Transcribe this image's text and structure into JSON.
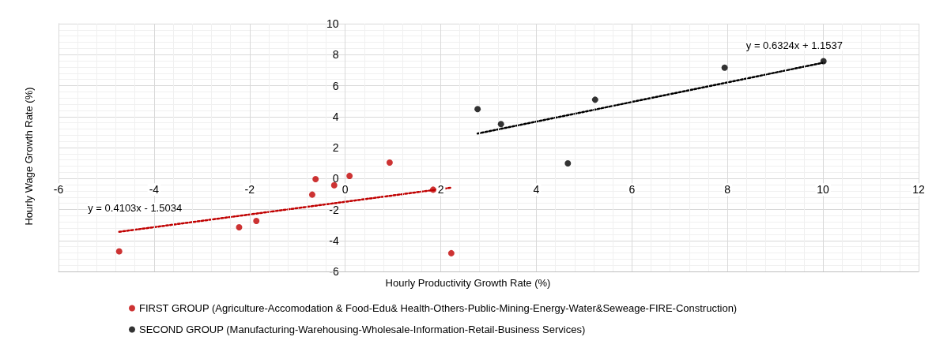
{
  "chart_data": {
    "type": "scatter",
    "xlabel": "Hourly Productivity Growth Rate (%)",
    "ylabel": "Hourly Wage Growth Rate (%)",
    "xlim": [
      -6,
      12
    ],
    "xticks": [
      -6,
      -4,
      -2,
      0,
      2,
      4,
      6,
      8,
      10,
      12
    ],
    "ylim": [
      -6,
      10
    ],
    "yticks": [
      -6,
      -4,
      -2,
      0,
      2,
      4,
      6,
      8,
      10
    ],
    "grid": true,
    "legend": "bottom",
    "marker": "circle",
    "series": [
      {
        "name": "FIRST GROUP (Agriculture-Accomodation & Food-Edu& Health-Others-Public-Mining-Energy-Water&Seweage-FIRE-Construction)",
        "color": "#c00000",
        "x": [
          -4.73,
          -2.22,
          -1.86,
          -0.69,
          -0.62,
          -0.23,
          0.09,
          0.93,
          1.84,
          2.22
        ],
        "values": [
          -4.7,
          -3.15,
          -2.74,
          -1.04,
          -0.04,
          -0.43,
          0.17,
          1.03,
          -0.72,
          -4.82
        ]
      },
      {
        "name": "SECOND GROUP (Manufacturing-Warehousing-Wholesale-Information-Retail-Business Services)",
        "color": "#000000",
        "x": [
          2.77,
          3.26,
          4.66,
          5.23,
          7.94,
          10.01
        ],
        "values": [
          4.48,
          3.52,
          0.98,
          5.09,
          7.16,
          7.58
        ]
      },
      {
        "type": "line",
        "color": "#c00000",
        "line_style": "dotted",
        "marker": "none",
        "x": [
          -4.73,
          2.22
        ],
        "values": [
          -3.44,
          -0.59
        ]
      },
      {
        "type": "line",
        "color": "#000000",
        "line_style": "dotted",
        "marker": "none",
        "x": [
          2.77,
          10.01
        ],
        "values": [
          2.9,
          7.48
        ]
      }
    ],
    "annotations": [
      "y = 0.4103x - 1.5034",
      "y = 0.6324x + 1.1537"
    ]
  }
}
